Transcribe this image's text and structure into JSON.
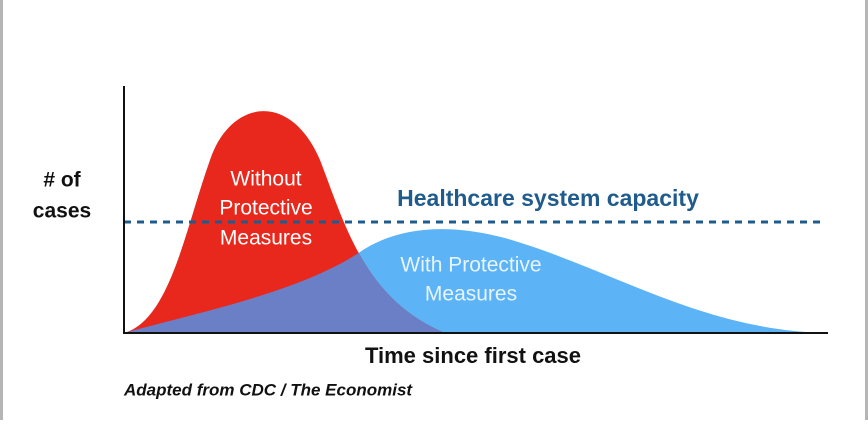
{
  "y_axis_label": [
    "# of",
    "cases"
  ],
  "capacity_label": "Healthcare system capacity",
  "curves": [
    {
      "label": [
        "Without",
        "Protective",
        "Measures"
      ]
    },
    {
      "label": [
        "With Protective",
        "Measures"
      ]
    }
  ],
  "x_axis_label": "Time since first case",
  "source": "Adapted from CDC / The Economist"
}
